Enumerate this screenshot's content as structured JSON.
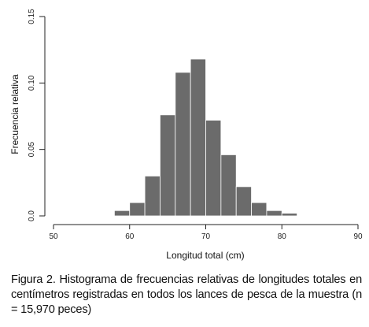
{
  "chart_data": {
    "type": "bar",
    "subtype": "histogram",
    "xlabel": "Longitud total (cm)",
    "ylabel": "Frecuencia relativa",
    "xlim": [
      50,
      90
    ],
    "ylim": [
      0,
      0.15
    ],
    "x_ticks": [
      "50",
      "60",
      "70",
      "80",
      "90"
    ],
    "y_ticks": [
      "0.0",
      "0.05",
      "0.10",
      "0.15"
    ],
    "bin_width": 2,
    "bins": [
      {
        "start": 58,
        "value": 0.004
      },
      {
        "start": 60,
        "value": 0.01
      },
      {
        "start": 62,
        "value": 0.03
      },
      {
        "start": 64,
        "value": 0.076
      },
      {
        "start": 66,
        "value": 0.108
      },
      {
        "start": 68,
        "value": 0.118
      },
      {
        "start": 70,
        "value": 0.072
      },
      {
        "start": 72,
        "value": 0.046
      },
      {
        "start": 74,
        "value": 0.022
      },
      {
        "start": 76,
        "value": 0.01
      },
      {
        "start": 78,
        "value": 0.004
      },
      {
        "start": 80,
        "value": 0.002
      }
    ],
    "bar_color": "#6b6b6b",
    "grid": false
  },
  "caption": "Figura 2. Histograma de frecuencias relativas de longitudes totales en centímetros registradas en todos los lances de pesca de la muestra (n = 15,970 peces)"
}
